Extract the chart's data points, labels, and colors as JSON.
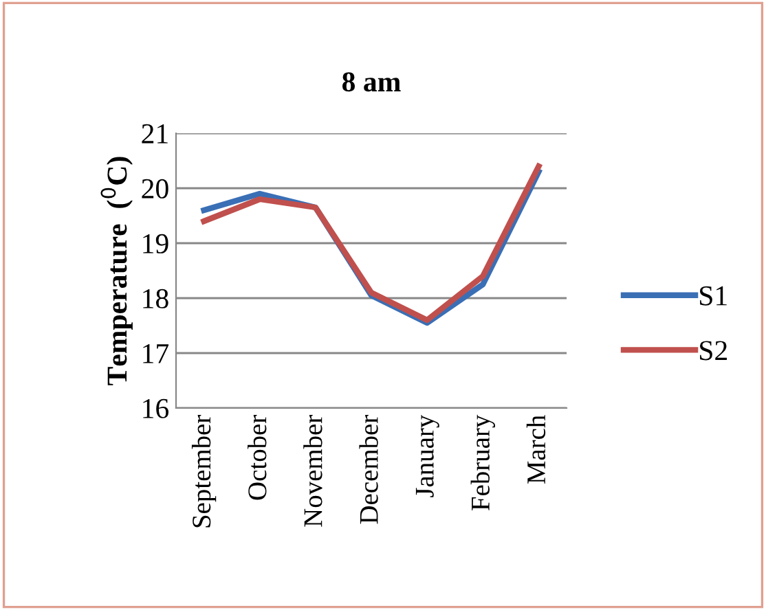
{
  "chart_data": {
    "type": "line",
    "title": "8 am",
    "ylabel": "Temperature  ($^{0}$C)",
    "categories": [
      "September",
      "October",
      "November",
      "December",
      "January",
      "February",
      "March"
    ],
    "series": [
      {
        "name": "S1",
        "color": "#3a6fb5",
        "values": [
          19.6,
          19.9,
          19.65,
          18.05,
          17.55,
          18.25,
          20.3
        ]
      },
      {
        "name": "S2",
        "color": "#c0504d",
        "values": [
          19.4,
          19.8,
          19.65,
          18.1,
          17.6,
          18.4,
          20.4
        ]
      }
    ],
    "ylim": [
      16,
      21
    ],
    "yticks": [
      16,
      17,
      18,
      19,
      20,
      21
    ],
    "grid": "y",
    "legend": "right",
    "marker": "none",
    "line_style": "solid"
  }
}
